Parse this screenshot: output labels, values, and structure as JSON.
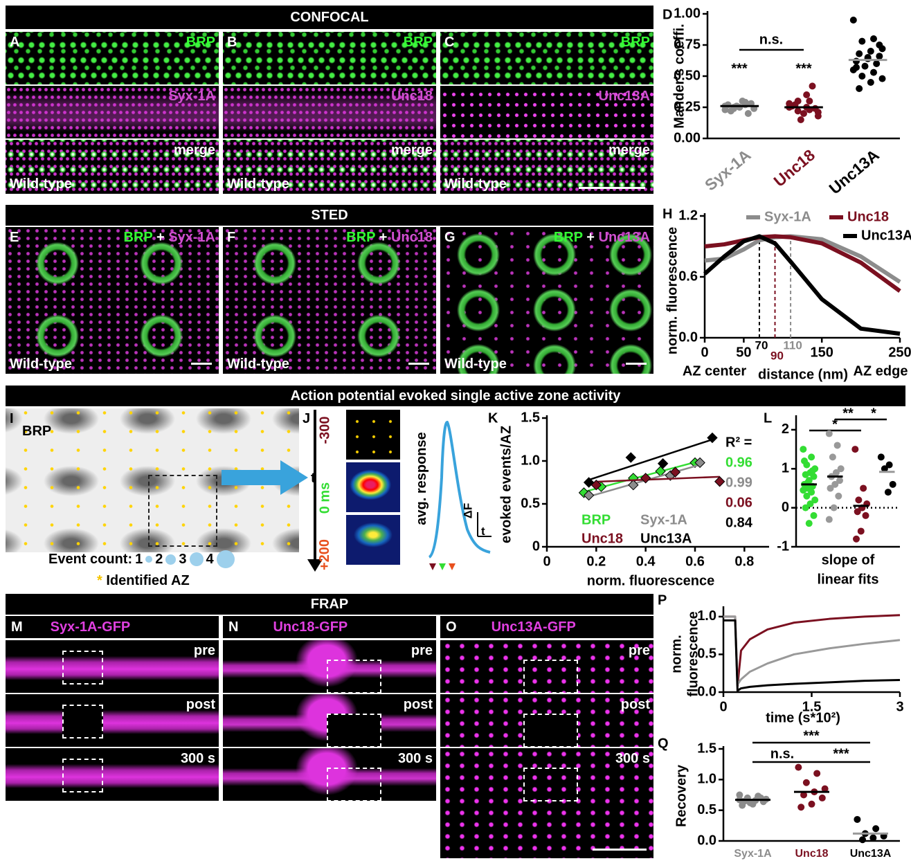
{
  "figure": {
    "sections": [
      "CONFOCAL",
      "STED",
      "Action potential evoked single active zone activity",
      "FRAP"
    ],
    "confocal": [
      {
        "letter": "A",
        "labels": [
          "BRP",
          "Syx-1A",
          "merge"
        ],
        "genotype": "Wild-type"
      },
      {
        "letter": "B",
        "labels": [
          "BRP",
          "Unc18",
          "merge"
        ],
        "genotype": "Wild-type"
      },
      {
        "letter": "C",
        "labels": [
          "BRP",
          "Unc13A",
          "merge"
        ],
        "genotype": "Wild-type"
      }
    ],
    "sted": [
      {
        "letter": "E",
        "green": "BRP",
        "plus": "+",
        "magenta": "Syx-1A",
        "genotype": "Wild-type"
      },
      {
        "letter": "F",
        "green": "BRP",
        "plus": "+",
        "magenta": "Unc18",
        "genotype": "Wild-type"
      },
      {
        "letter": "G",
        "green": "BRP",
        "plus": "+",
        "magenta": "Unc13A",
        "genotype": "Wild-type"
      }
    ],
    "panel_i": {
      "letter": "I",
      "label": "BRP",
      "event_count": "Event count:",
      "sizes": [
        "1",
        "2",
        "3",
        "4"
      ],
      "star": "*",
      "legend": "Identified AZ"
    },
    "panel_j": {
      "letter": "J",
      "time_axis": "t",
      "times": [
        "-300",
        "0 ms",
        "+200"
      ],
      "ylabel": "avg. response",
      "scale_y": "ΔF",
      "scale_x": "t"
    },
    "frap": [
      {
        "letter": "M",
        "title": "Syx-1A-GFP",
        "rows": [
          "pre",
          "post",
          "300 s"
        ]
      },
      {
        "letter": "N",
        "title": "Unc18-GFP",
        "rows": [
          "pre",
          "post",
          "300 s"
        ]
      },
      {
        "letter": "O",
        "title": "Unc13A-GFP",
        "rows": [
          "pre",
          "post",
          "300 s"
        ]
      }
    ]
  },
  "chart_data": [
    {
      "type": "strip",
      "panel": "D",
      "ylabel": "Mander's coeffi.",
      "categories": [
        "Syx-1A",
        "Unc18",
        "Unc13A"
      ],
      "colors": [
        "#8c8c8c",
        "#7b1020",
        "#000000"
      ],
      "values": [
        0.26,
        0.25,
        0.63
      ],
      "points": [
        [
          0.26,
          0.27,
          0.25,
          0.24,
          0.3,
          0.22,
          0.28,
          0.25,
          0.27,
          0.2,
          0.26,
          0.23,
          0.29,
          0.24
        ],
        [
          0.25,
          0.3,
          0.22,
          0.18,
          0.35,
          0.27,
          0.24,
          0.2,
          0.26,
          0.42,
          0.15,
          0.28,
          0.23,
          0.3,
          0.21,
          0.25
        ],
        [
          0.95,
          0.8,
          0.78,
          0.72,
          0.7,
          0.68,
          0.66,
          0.64,
          0.62,
          0.6,
          0.58,
          0.55,
          0.53,
          0.5,
          0.48,
          0.45,
          0.4,
          0.75,
          0.65,
          0.57
        ]
      ],
      "ylim": [
        0,
        1
      ],
      "yticks": [
        {
          "value": 0,
          "label": "0.00"
        },
        0.25,
        {
          "value": 0.5,
          "label": "0.50"
        },
        0.75,
        {
          "value": 1,
          "label": "1.00"
        }
      ],
      "annotations": [
        "n.s.",
        "***",
        "***"
      ]
    },
    {
      "type": "line",
      "panel": "H",
      "ylabel": "norm. fluorescence",
      "xlabel": "distance (nm)",
      "annotations": [
        "AZ center",
        "AZ edge"
      ],
      "x": [
        0,
        25,
        50,
        70,
        90,
        110,
        150,
        200,
        250
      ],
      "series": [
        {
          "name": "Syx-1A",
          "color": "#8c8c8c",
          "values": [
            0.76,
            0.78,
            0.87,
            0.96,
            0.99,
            1.0,
            0.97,
            0.8,
            0.55
          ]
        },
        {
          "name": "Unc18",
          "color": "#7b1020",
          "values": [
            0.9,
            0.92,
            0.96,
            0.99,
            1.0,
            0.99,
            0.93,
            0.74,
            0.46
          ]
        },
        {
          "name": "Unc13A",
          "color": "#000000",
          "values": [
            0.63,
            0.8,
            0.95,
            1.0,
            0.93,
            0.75,
            0.38,
            0.09,
            0.04
          ]
        }
      ],
      "xlim": [
        0,
        250
      ],
      "xticks": [
        0,
        50,
        150,
        250
      ],
      "ylim": [
        0,
        1.2
      ],
      "yticks": [
        {
          "value": 0,
          "label": "0.0"
        },
        0.6,
        1.2
      ],
      "vlines": [
        {
          "value": 70,
          "color": "#000000"
        },
        {
          "value": 90,
          "color": "#7b1020"
        },
        {
          "value": 110,
          "color": "#8c8c8c"
        }
      ],
      "legend": true
    },
    {
      "type": "scatter",
      "panel": "K",
      "ylabel": "evoked events/AZ",
      "xlabel": "norm. fluorescence",
      "r2_title": "R² =",
      "series": [
        {
          "name": "BRP",
          "color": "#33dd33",
          "x": [
            0.15,
            0.22,
            0.35,
            0.46,
            0.6
          ],
          "values": [
            0.63,
            0.7,
            0.8,
            0.88,
            0.98
          ],
          "r2": 0.96
        },
        {
          "name": "Syx-1A",
          "color": "#8c8c8c",
          "x": [
            0.17,
            0.35,
            0.5,
            0.62
          ],
          "values": [
            0.6,
            0.72,
            0.83,
            0.98
          ],
          "r2": 0.99
        },
        {
          "name": "Unc18",
          "color": "#7b1020",
          "x": [
            0.2,
            0.4,
            0.52,
            0.7
          ],
          "values": [
            0.72,
            0.8,
            0.87,
            0.76
          ],
          "r2": 0.06
        },
        {
          "name": "Unc13A",
          "color": "#000000",
          "x": [
            0.17,
            0.34,
            0.47,
            0.67
          ],
          "values": [
            0.75,
            1.04,
            0.97,
            1.27
          ],
          "r2": 0.84
        }
      ],
      "xlim": [
        0,
        0.9
      ],
      "xticks": [
        0,
        0.2,
        0.4,
        0.6,
        0.8
      ],
      "ylim": [
        0,
        1.5
      ],
      "yticks": [
        0,
        0.5,
        {
          "value": 1,
          "label": "1.0"
        },
        1.5
      ]
    },
    {
      "type": "strip",
      "panel": "L",
      "xlabel": [
        "slope of",
        "linear fits"
      ],
      "categories": [
        null,
        null,
        null,
        null
      ],
      "colors": [
        "#33dd33",
        "#999999",
        "#7b1020",
        "#000000"
      ],
      "values": [
        0.6,
        0.8,
        0.05,
        0.92
      ],
      "points": [
        [
          1.5,
          1.3,
          1.1,
          1.0,
          0.9,
          0.85,
          0.8,
          0.7,
          0.6,
          0.55,
          0.5,
          0.45,
          0.4,
          0.3,
          0.2,
          0.1,
          0.0,
          -0.2,
          -0.4,
          1.2,
          0.95,
          0.65
        ],
        [
          1.9,
          1.6,
          1.3,
          1.0,
          0.9,
          0.8,
          0.7,
          0.6,
          0.5,
          0.3,
          0.0,
          -0.3
        ],
        [
          1.5,
          0.5,
          0.2,
          0.1,
          0.0,
          -0.1,
          -0.2,
          -0.6,
          -0.8
        ],
        [
          1.3,
          1.1,
          1.0,
          0.6,
          0.4
        ]
      ],
      "ylim": [
        -1,
        2.3
      ],
      "yticks": [
        -1,
        0,
        1,
        2
      ],
      "annotations": [
        "*",
        "**",
        "*"
      ],
      "zero_line": true
    },
    {
      "type": "line",
      "panel": "P",
      "ylabel": [
        "norm.",
        "fluorescence"
      ],
      "xlabel": "time (s*10²)",
      "x": [
        0,
        0.2,
        0.24,
        0.3,
        0.45,
        0.75,
        1.2,
        1.8,
        2.4,
        3
      ],
      "series": [
        {
          "color": "#7b1020",
          "values": [
            1.0,
            1.0,
            0.08,
            0.55,
            0.7,
            0.83,
            0.92,
            0.97,
            1.0,
            1.02
          ]
        },
        {
          "color": "#999999",
          "values": [
            1.0,
            1.0,
            0.1,
            0.17,
            0.27,
            0.38,
            0.5,
            0.58,
            0.64,
            0.69
          ]
        },
        {
          "color": "#000000",
          "values": [
            0.95,
            0.95,
            0.02,
            0.05,
            0.07,
            0.09,
            0.11,
            0.13,
            0.15,
            0.16
          ]
        }
      ],
      "xlim": [
        0,
        3
      ],
      "xticks": [
        0,
        1.5,
        3
      ],
      "ylim": [
        0,
        1.1
      ],
      "yticks": [
        {
          "value": 0,
          "label": "0.0"
        },
        0.5,
        {
          "value": 1,
          "label": "1.0"
        }
      ],
      "legend": false
    },
    {
      "type": "strip",
      "panel": "Q",
      "ylabel": "Recovery",
      "categories": [
        "Syx-1A",
        "Unc18",
        "Unc13A"
      ],
      "colors": [
        "#8c8c8c",
        "#7b1020",
        "#000000"
      ],
      "values": [
        0.67,
        0.8,
        0.12
      ],
      "points": [
        [
          0.75,
          0.72,
          0.7,
          0.68,
          0.66,
          0.65,
          0.64,
          0.6,
          0.58,
          0.7,
          0.62,
          0.67,
          0.73
        ],
        [
          1.2,
          1.1,
          0.95,
          0.85,
          0.8,
          0.75,
          0.7,
          0.6,
          0.55
        ],
        [
          0.35,
          0.2,
          0.12,
          0.08,
          0.05,
          0.02
        ]
      ],
      "ylim": [
        0,
        1.5
      ],
      "yticks": [
        {
          "value": 0,
          "label": "0.0"
        },
        0.5,
        {
          "value": 1,
          "label": "1.0"
        },
        1.5
      ],
      "annotations": [
        "***",
        "n.s.",
        "***"
      ]
    }
  ]
}
